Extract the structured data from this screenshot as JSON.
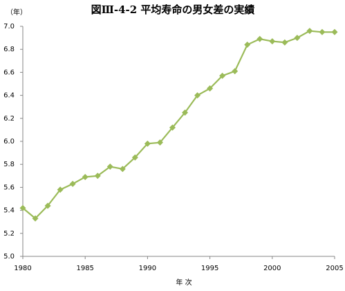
{
  "chart_data": {
    "type": "line",
    "title": "図Ⅲ-4-2 平均寿命の男女差の実績",
    "y_label": "（年）",
    "x_label": "年 次",
    "x": [
      1980,
      1981,
      1982,
      1983,
      1984,
      1985,
      1986,
      1987,
      1988,
      1989,
      1990,
      1991,
      1992,
      1993,
      1994,
      1995,
      1996,
      1997,
      1998,
      1999,
      2000,
      2001,
      2002,
      2003,
      2004,
      2005
    ],
    "values": [
      5.42,
      5.33,
      5.44,
      5.58,
      5.63,
      5.69,
      5.7,
      5.78,
      5.76,
      5.86,
      5.98,
      5.99,
      6.12,
      6.25,
      6.4,
      6.46,
      6.57,
      6.61,
      6.84,
      6.89,
      6.87,
      6.86,
      6.9,
      6.96,
      6.95,
      6.95
    ],
    "color": "#9bbb59",
    "xlim": [
      1980,
      2005
    ],
    "xticks": [
      1980,
      1985,
      1990,
      1995,
      2000,
      2005
    ],
    "ylim": [
      5.0,
      7.0
    ],
    "yticks": [
      {
        "value": 5.0,
        "label": "5.0"
      },
      5.2,
      5.4,
      5.6,
      5.8,
      {
        "value": 6.0,
        "label": "6.0"
      },
      6.2,
      6.4,
      6.6,
      6.8,
      {
        "value": 7.0,
        "label": "7.0"
      }
    ],
    "grid": false
  }
}
